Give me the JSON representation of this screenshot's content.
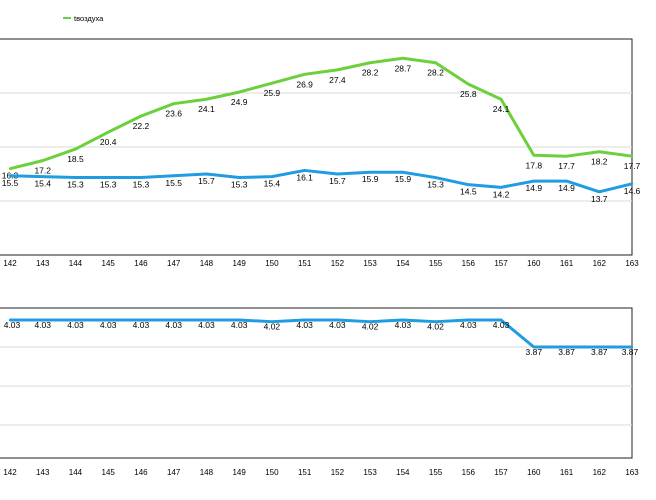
{
  "chart_data": [
    {
      "type": "line",
      "categories": [
        "142",
        "143",
        "144",
        "145",
        "146",
        "147",
        "148",
        "149",
        "150",
        "151",
        "152",
        "153",
        "154",
        "155",
        "156",
        "157",
        "160",
        "161",
        "162",
        "163"
      ],
      "series": [
        {
          "name": "tвоздуха",
          "color": "#6cd03c",
          "values": [
            16.3,
            17.2,
            18.5,
            20.4,
            22.2,
            23.6,
            24.1,
            24.9,
            25.9,
            26.9,
            27.4,
            28.2,
            28.7,
            28.2,
            25.8,
            24.1,
            17.8,
            17.7,
            18.2,
            17.7
          ],
          "labels": [
            "16.3",
            "17.2",
            "18.5",
            "20.4",
            "22.2",
            "23.6",
            "24.1",
            "24.9",
            "25.9",
            "26.9",
            "27.4",
            "28.2",
            "28.7",
            "28.2",
            "25.8",
            "24.1",
            "17.8",
            "17.7",
            "18.2",
            "17.7"
          ]
        },
        {
          "color": "#1f9de0",
          "values": [
            15.5,
            15.4,
            15.3,
            15.3,
            15.3,
            15.5,
            15.7,
            15.3,
            15.4,
            16.1,
            15.7,
            15.9,
            15.9,
            15.3,
            14.5,
            14.2,
            14.9,
            14.9,
            13.7,
            14.6
          ],
          "labels": [
            "15.5",
            "15.4",
            "15.3",
            "15.3",
            "15.3",
            "15.5",
            "15.7",
            "15.3",
            "15.4",
            "16.1",
            "15.7",
            "15.9",
            "15.9",
            "15.3",
            "14.5",
            "14.2",
            "14.9",
            "14.9",
            "13.7",
            "14.6"
          ]
        }
      ],
      "legend": "top-left",
      "grid": true
    },
    {
      "type": "line",
      "categories": [
        "142",
        "143",
        "144",
        "145",
        "146",
        "147",
        "148",
        "149",
        "150",
        "151",
        "152",
        "153",
        "154",
        "155",
        "156",
        "157",
        "160",
        "161",
        "162",
        "163"
      ],
      "series": [
        {
          "color": "#1f9de0",
          "values": [
            4.03,
            4.03,
            4.03,
            4.03,
            4.03,
            4.03,
            4.03,
            4.03,
            4.02,
            4.03,
            4.03,
            4.02,
            4.03,
            4.02,
            4.03,
            4.03,
            3.87,
            3.87,
            3.87,
            3.87
          ],
          "labels": [
            "4.03",
            "4.03",
            "4.03",
            "4.03",
            "4.03",
            "4.03",
            "4.03",
            "4.03",
            "4.02",
            "4.03",
            "4.03",
            "4.02",
            "4.03",
            "4.02",
            "4.03",
            "4.03",
            "3.87",
            "3.87",
            "3.87",
            "3.87"
          ]
        }
      ],
      "grid": true
    }
  ]
}
